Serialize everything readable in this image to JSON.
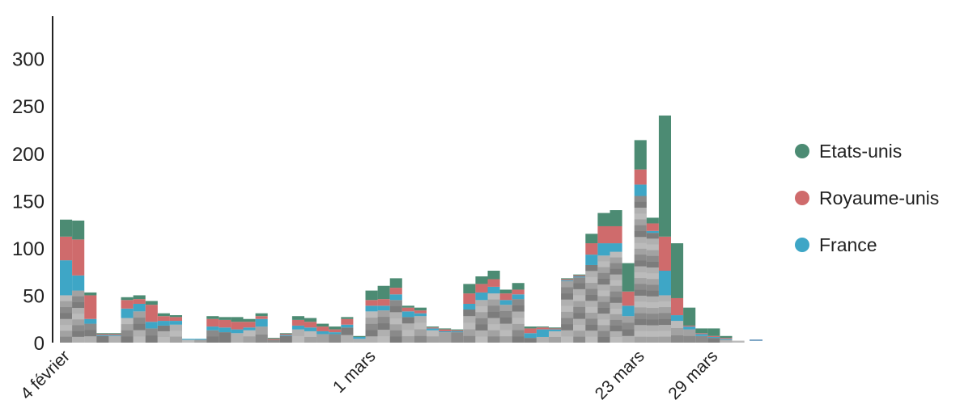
{
  "chart_data": {
    "type": "bar",
    "stacked": true,
    "ylim": [
      0,
      345
    ],
    "yticks": [
      0,
      50,
      100,
      150,
      200,
      250,
      300
    ],
    "xtick_labels": [
      {
        "index": 0,
        "label": "4 février"
      },
      {
        "index": 25,
        "label": "1 mars"
      },
      {
        "index": 47,
        "label": "23 mars"
      },
      {
        "index": 53,
        "label": "29 mars"
      }
    ],
    "legend": {
      "position": "right"
    },
    "series": [
      {
        "name": "France",
        "color": "#3ea6c6",
        "values": [
          37,
          16,
          5,
          1,
          1,
          10,
          8,
          7,
          5,
          4,
          1,
          1,
          4,
          5,
          4,
          3,
          8,
          0,
          1,
          4,
          4,
          3,
          2,
          3,
          2,
          6,
          5,
          6,
          6,
          3,
          2,
          1,
          1,
          6,
          8,
          7,
          5,
          5,
          5,
          8,
          2,
          1,
          1,
          11,
          13,
          9,
          11,
          12,
          2,
          26,
          6,
          3,
          2,
          1,
          1,
          0
        ]
      },
      {
        "name": "Royaume-unis",
        "color": "#cf6b6c",
        "values": [
          25,
          38,
          25,
          1,
          1,
          9,
          5,
          18,
          5,
          4,
          0,
          0,
          8,
          8,
          8,
          6,
          3,
          1,
          1,
          6,
          6,
          5,
          3,
          6,
          0,
          6,
          7,
          7,
          4,
          3,
          1,
          2,
          1,
          11,
          9,
          8,
          7,
          5,
          5,
          2,
          1,
          1,
          1,
          12,
          18,
          18,
          15,
          16,
          8,
          36,
          18,
          1,
          1,
          1,
          1,
          0
        ]
      },
      {
        "name": "Etats-unis",
        "color": "#4c8b73",
        "values": [
          18,
          20,
          3,
          1,
          1,
          3,
          4,
          4,
          3,
          2,
          0,
          0,
          3,
          3,
          5,
          3,
          3,
          1,
          1,
          4,
          4,
          3,
          3,
          2,
          1,
          10,
          14,
          10,
          2,
          3,
          1,
          1,
          1,
          10,
          8,
          9,
          4,
          7,
          2,
          1,
          1,
          1,
          1,
          10,
          14,
          17,
          30,
          31,
          6,
          128,
          58,
          19,
          5,
          8,
          2,
          0
        ]
      },
      {
        "name": "",
        "color": "#aaaaaa",
        "values": [
          50,
          55,
          20,
          7,
          7,
          26,
          33,
          15,
          18,
          19,
          3,
          3,
          13,
          11,
          10,
          13,
          17,
          3,
          7,
          14,
          12,
          9,
          9,
          16,
          4,
          33,
          34,
          45,
          27,
          28,
          13,
          11,
          11,
          35,
          45,
          52,
          40,
          46,
          5,
          6,
          12,
          65,
          69,
          82,
          92,
          96,
          28,
          155,
          116,
          50,
          23,
          14,
          7,
          5,
          3,
          2
        ]
      }
    ]
  }
}
